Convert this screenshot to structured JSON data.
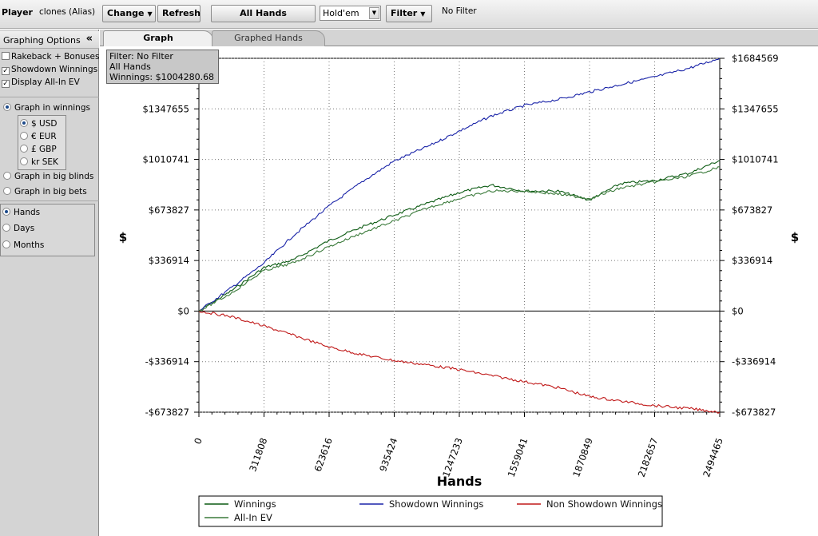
{
  "toolbar": {
    "player_label": "Player",
    "player_value": "clones (Alias)",
    "change_label": "Change",
    "refresh_label": "Refresh",
    "all_hands_label": "All Hands",
    "game_select": "Hold'em",
    "filter_label": "Filter",
    "filter_status": "No Filter"
  },
  "sidebar": {
    "title": "Graphing Options",
    "collapse_icon": "«",
    "checkboxes": [
      {
        "label": "Rakeback + Bonuses",
        "checked": false
      },
      {
        "label": "Showdown Winnings",
        "checked": true
      },
      {
        "label": "Display All-In EV",
        "checked": true
      }
    ],
    "graph_modes": [
      {
        "label": "Graph in winnings",
        "selected": true
      },
      {
        "label": "Graph in big blinds",
        "selected": false
      },
      {
        "label": "Graph in big bets",
        "selected": false
      }
    ],
    "currencies": [
      {
        "label": "$ USD",
        "selected": true
      },
      {
        "label": "€ EUR",
        "selected": false
      },
      {
        "label": "£ GBP",
        "selected": false
      },
      {
        "label": "kr SEK",
        "selected": false
      }
    ],
    "x_modes": [
      {
        "label": "Hands",
        "selected": true
      },
      {
        "label": "Days",
        "selected": false
      },
      {
        "label": "Months",
        "selected": false
      }
    ]
  },
  "tabs": [
    {
      "label": "Graph",
      "active": true
    },
    {
      "label": "Graphed Hands",
      "active": false
    }
  ],
  "filter_box": {
    "line1": "Filter: No Filter",
    "line2": "All Hands",
    "line3": "Winnings: $1004280.68"
  },
  "chart_data": {
    "type": "line",
    "title": "",
    "xlabel": "Hands",
    "ylabel": "$",
    "ylim": [
      -673827,
      1684569
    ],
    "xlim": [
      0,
      2494465
    ],
    "x_ticks": [
      0,
      311808,
      623616,
      935424,
      1247233,
      1559041,
      1870849,
      2182657,
      2494465
    ],
    "y_ticks": [
      -673827,
      -336914,
      0,
      336914,
      673827,
      1010741,
      1347655,
      1684569
    ],
    "y_tick_labels": [
      "-$673827",
      "-$336914",
      "$0",
      "$336914",
      "$673827",
      "$1010741",
      "$1347655",
      "$1684569"
    ],
    "grid": true,
    "legend_position": "bottom",
    "colors": {
      "winnings": "#0b5a12",
      "showdown": "#1a24a8",
      "non_showdown": "#c01818",
      "allin": "#3a7a3a"
    },
    "x": [
      0,
      150000,
      311808,
      450000,
      623616,
      780000,
      935424,
      1100000,
      1247233,
      1400000,
      1559041,
      1720000,
      1870849,
      2020000,
      2182657,
      2350000,
      2494465
    ],
    "series": [
      {
        "name": "Winnings",
        "values": [
          0,
          130000,
          290000,
          340000,
          470000,
          560000,
          640000,
          720000,
          790000,
          840000,
          800000,
          800000,
          740000,
          850000,
          870000,
          920000,
          1004281
        ]
      },
      {
        "name": "Showdown Winnings",
        "values": [
          0,
          150000,
          320000,
          500000,
          700000,
          860000,
          1000000,
          1100000,
          1200000,
          1300000,
          1370000,
          1410000,
          1460000,
          1510000,
          1560000,
          1620000,
          1684569
        ]
      },
      {
        "name": "Non Showdown Winnings",
        "values": [
          0,
          -35000,
          -100000,
          -160000,
          -240000,
          -290000,
          -330000,
          -360000,
          -390000,
          -430000,
          -470000,
          -510000,
          -570000,
          -600000,
          -630000,
          -650000,
          -673827
        ]
      },
      {
        "name": "All-In EV",
        "values": [
          0,
          115000,
          270000,
          320000,
          430000,
          520000,
          600000,
          690000,
          750000,
          800000,
          800000,
          780000,
          750000,
          820000,
          860000,
          900000,
          960000
        ]
      }
    ]
  }
}
